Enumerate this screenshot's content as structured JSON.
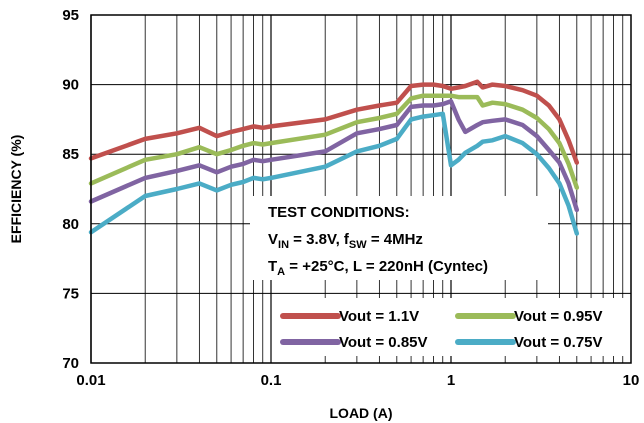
{
  "chart_data": {
    "type": "line",
    "title": "",
    "xlabel": "LOAD (A)",
    "ylabel": "EFFICIENCY (%)",
    "xscale": "log",
    "xlim": [
      0.01,
      10
    ],
    "ylim": [
      70,
      95
    ],
    "x_ticks": [
      "0.01",
      "0.1",
      "1",
      "10"
    ],
    "y_ticks": [
      "70",
      "75",
      "80",
      "85",
      "90",
      "95"
    ],
    "grid": true,
    "legend_position": "bottom-right",
    "conditions": {
      "title": "TEST CONDITIONS:",
      "line1": {
        "a": "V",
        "a_sub": "IN",
        "b": " = 3.8V, f",
        "b_sub": "SW",
        "c": " = 4MHz"
      },
      "line2": {
        "a": "T",
        "a_sub": "A",
        "b": " = +25°C, L = 220nH (Cyntec)"
      }
    },
    "series": [
      {
        "name": "Vout = 1.1V",
        "color": "#c0504d",
        "x": [
          0.01,
          0.02,
          0.03,
          0.04,
          0.05,
          0.06,
          0.07,
          0.08,
          0.09,
          0.1,
          0.2,
          0.3,
          0.4,
          0.5,
          0.6,
          0.7,
          0.8,
          0.9,
          1.0,
          1.1,
          1.2,
          1.4,
          1.5,
          1.7,
          2.0,
          2.5,
          3.0,
          3.5,
          4.0,
          4.5,
          5.0
        ],
        "y": [
          84.7,
          86.1,
          86.5,
          86.9,
          86.3,
          86.6,
          86.8,
          87.0,
          86.9,
          87.0,
          87.5,
          88.2,
          88.5,
          88.7,
          89.9,
          90.0,
          90.0,
          89.9,
          89.7,
          89.8,
          89.9,
          90.2,
          89.8,
          90.0,
          89.9,
          89.6,
          89.2,
          88.5,
          87.5,
          86.0,
          84.4
        ]
      },
      {
        "name": "Vout = 0.95V",
        "color": "#9bbb59",
        "x": [
          0.01,
          0.02,
          0.03,
          0.04,
          0.05,
          0.06,
          0.07,
          0.08,
          0.09,
          0.1,
          0.2,
          0.3,
          0.4,
          0.5,
          0.6,
          0.7,
          0.8,
          0.9,
          1.0,
          1.1,
          1.2,
          1.4,
          1.5,
          1.7,
          2.0,
          2.5,
          3.0,
          3.5,
          4.0,
          4.5,
          5.0
        ],
        "y": [
          82.9,
          84.6,
          85.0,
          85.5,
          85.0,
          85.3,
          85.6,
          85.8,
          85.7,
          85.8,
          86.4,
          87.3,
          87.6,
          87.9,
          89.0,
          89.2,
          89.2,
          89.2,
          89.2,
          89.1,
          89.1,
          89.1,
          88.5,
          88.7,
          88.6,
          88.2,
          87.6,
          86.8,
          85.8,
          84.3,
          82.6
        ]
      },
      {
        "name": "Vout = 0.85V",
        "color": "#8064a2",
        "x": [
          0.01,
          0.02,
          0.03,
          0.04,
          0.05,
          0.06,
          0.07,
          0.08,
          0.09,
          0.1,
          0.2,
          0.3,
          0.4,
          0.5,
          0.6,
          0.7,
          0.8,
          0.9,
          1.0,
          1.1,
          1.2,
          1.4,
          1.5,
          1.7,
          2.0,
          2.5,
          3.0,
          3.5,
          4.0,
          4.5,
          5.0
        ],
        "y": [
          81.6,
          83.3,
          83.8,
          84.2,
          83.7,
          84.1,
          84.3,
          84.6,
          84.5,
          84.6,
          85.2,
          86.5,
          86.8,
          87.1,
          88.4,
          88.5,
          88.5,
          88.6,
          88.8,
          87.5,
          86.6,
          87.1,
          87.3,
          87.4,
          87.5,
          87.1,
          86.3,
          85.3,
          84.4,
          82.9,
          81.0
        ]
      },
      {
        "name": "Vout = 0.75V",
        "color": "#4bacc6",
        "x": [
          0.01,
          0.02,
          0.03,
          0.04,
          0.05,
          0.06,
          0.07,
          0.08,
          0.09,
          0.1,
          0.2,
          0.3,
          0.4,
          0.5,
          0.6,
          0.7,
          0.8,
          0.9,
          1.0,
          1.1,
          1.2,
          1.4,
          1.5,
          1.7,
          2.0,
          2.5,
          3.0,
          3.5,
          4.0,
          4.5,
          5.0
        ],
        "y": [
          79.4,
          82.0,
          82.5,
          82.9,
          82.4,
          82.8,
          83.0,
          83.3,
          83.2,
          83.3,
          84.1,
          85.2,
          85.6,
          86.1,
          87.5,
          87.7,
          87.8,
          87.9,
          84.2,
          84.6,
          85.1,
          85.6,
          85.9,
          86.0,
          86.3,
          85.8,
          85.0,
          84.0,
          82.9,
          81.3,
          79.3
        ]
      }
    ]
  }
}
